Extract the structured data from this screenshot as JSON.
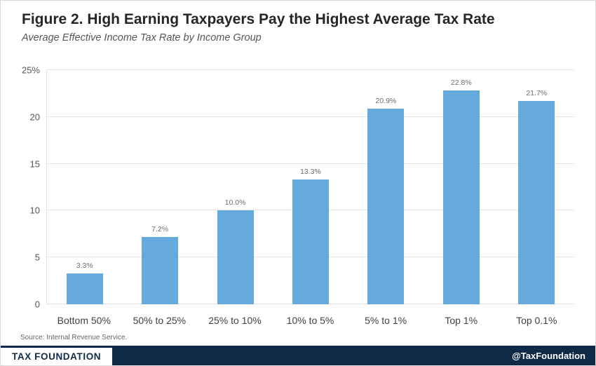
{
  "header": {
    "title": "Figure 2. High Earning Taxpayers Pay the Highest Average Tax Rate",
    "subtitle": "Average Effective Income Tax Rate by Income Group"
  },
  "chart_data": {
    "type": "bar",
    "categories": [
      "Bottom 50%",
      "50% to 25%",
      "25% to 10%",
      "10% to 5%",
      "5% to 1%",
      "Top 1%",
      "Top 0.1%"
    ],
    "values": [
      3.3,
      7.2,
      10.0,
      13.3,
      20.9,
      22.8,
      21.7
    ],
    "value_labels": [
      "3.3%",
      "7.2%",
      "10.0%",
      "13.3%",
      "20.9%",
      "22.8%",
      "21.7%"
    ],
    "title": "Figure 2. High Earning Taxpayers Pay the Highest Average Tax Rate",
    "subtitle": "Average Effective Income Tax Rate by Income Group",
    "xlabel": "",
    "ylabel": "",
    "ylim": [
      0,
      25
    ],
    "yticks": [
      {
        "value": 0,
        "label": "0"
      },
      {
        "value": 5,
        "label": "5"
      },
      {
        "value": 10,
        "label": "10"
      },
      {
        "value": 15,
        "label": "15"
      },
      {
        "value": 20,
        "label": "20"
      },
      {
        "value": 25,
        "label": "25%"
      }
    ],
    "grid": true,
    "legend": false
  },
  "source": "Source: Internal Revenue Service.",
  "footer": {
    "brand": "TAX FOUNDATION",
    "handle": "@TaxFoundation"
  },
  "colors": {
    "bar": "#66a9dc",
    "footer_navy": "#0e2a47",
    "grid": "#e1e1e1",
    "title_text": "#262626",
    "subtitle_text": "#555555",
    "value_label_text": "#6e6e6e",
    "axis_text": "#555555"
  }
}
